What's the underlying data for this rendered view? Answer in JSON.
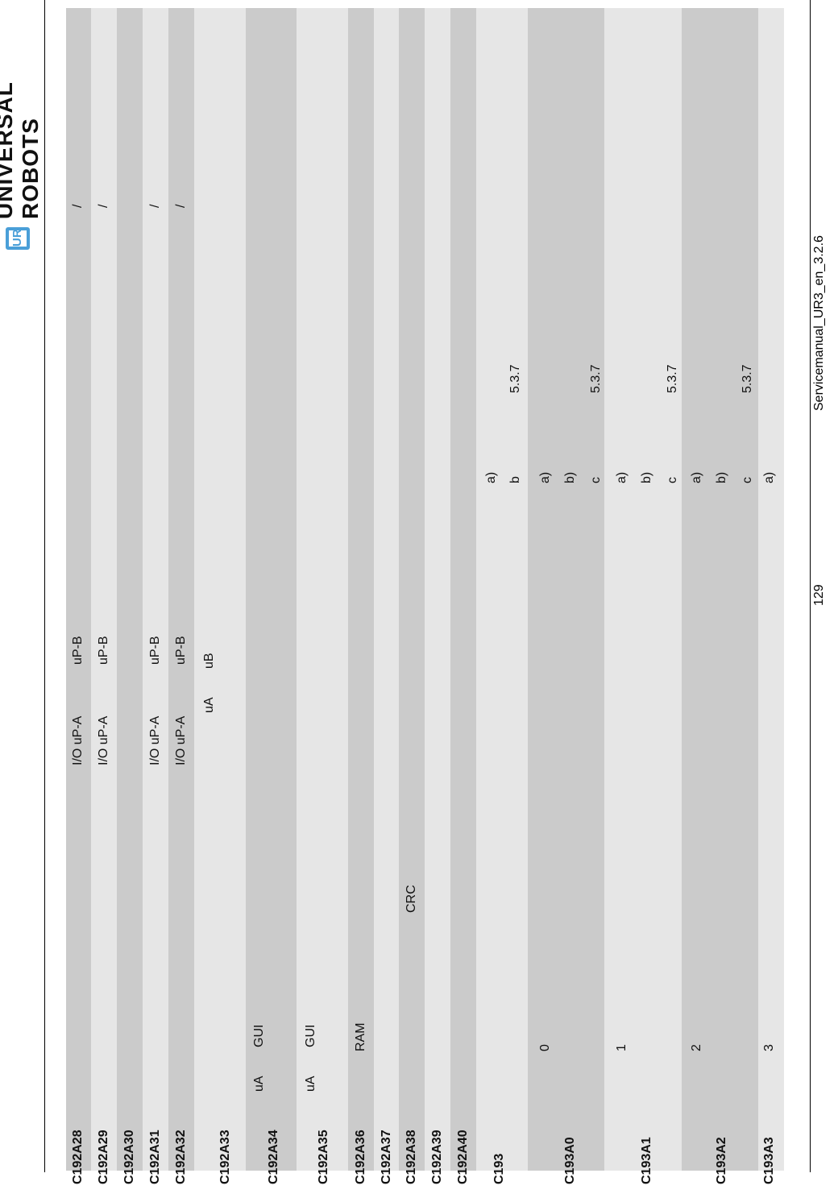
{
  "header": {
    "logo_text": "UNIVERSAL ROBOTS",
    "logo_mark": "UR"
  },
  "footer": {
    "page_number": "129",
    "doc_name": "Servicemanual_UR3_en_3.2.6"
  },
  "colors": {
    "row_dark": "#cbcbcb",
    "row_light": "#e6e6e6",
    "logo_blue": "#4a9fd8"
  },
  "rows": [
    {
      "code": "C192A28",
      "io": "I/O uP-A",
      "upb": "uP-B",
      "slash": "/"
    },
    {
      "code": "C192A29",
      "io": "I/O uP-A",
      "upb": "uP-B",
      "slash": "/"
    },
    {
      "code": "C192A30"
    },
    {
      "code": "C192A31",
      "io": "I/O uP-A",
      "upb": "uP-B",
      "slash": "/"
    },
    {
      "code": "C192A32",
      "io": "I/O uP-A",
      "upb": "uP-B",
      "slash": "/"
    },
    {
      "code": "C192A33",
      "ua": "uA",
      "ub": "uB"
    },
    {
      "code": "C192A34",
      "ua": "uA",
      "gui": "GUI"
    },
    {
      "code": "C192A35",
      "ua": "uA",
      "gui": "GUI"
    },
    {
      "code": "C192A36",
      "ram": "RAM"
    },
    {
      "code": "C192A37"
    },
    {
      "code": "C192A38",
      "crc": "CRC"
    },
    {
      "code": "C192A39"
    },
    {
      "code": "C192A40"
    },
    {
      "code": "C193",
      "steps": [
        "a)",
        "b"
      ],
      "ref": "5.3.7"
    },
    {
      "code": "C193A0",
      "num": "0",
      "steps": [
        "a)",
        "b)",
        "c"
      ],
      "ref": "5.3.7"
    },
    {
      "code": "C193A1",
      "num": "1",
      "steps": [
        "a)",
        "b)",
        "c"
      ],
      "ref": "5.3.7"
    },
    {
      "code": "C193A2",
      "num": "2",
      "steps": [
        "a)",
        "b)",
        "c"
      ],
      "ref": "5.3.7"
    },
    {
      "code": "C193A3",
      "num": "3",
      "steps": [
        "a)"
      ]
    }
  ]
}
